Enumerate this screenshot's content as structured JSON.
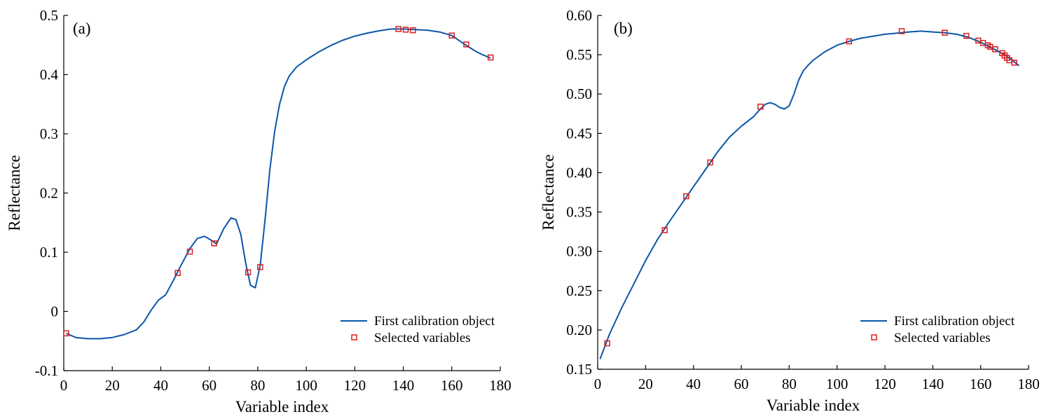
{
  "chart_data": [
    {
      "type": "line",
      "panel_label": "(a)",
      "xlabel": "Variable index",
      "ylabel": "Reflectance",
      "xlim": [
        0,
        180
      ],
      "ylim": [
        -0.1,
        0.5
      ],
      "x_ticks": [
        0,
        20,
        40,
        60,
        80,
        100,
        120,
        140,
        160,
        180
      ],
      "x_tick_labels": [
        "0",
        "20",
        "40",
        "60",
        "80",
        "100",
        "120",
        "140",
        "160",
        "180"
      ],
      "y_ticks": [
        -0.1,
        0,
        0.1,
        0.2,
        0.3,
        0.4,
        0.5
      ],
      "y_tick_labels": [
        "-0.1",
        "0",
        "0.1",
        "0.2",
        "0.3",
        "0.4",
        "0.5"
      ],
      "legend_position": "bottom-right",
      "series": [
        {
          "name": "First calibration object",
          "kind": "line",
          "color": "#0a56a8",
          "x": [
            1,
            5,
            10,
            15,
            20,
            25,
            30,
            33,
            36,
            39,
            42,
            45,
            48,
            52,
            55,
            58,
            61,
            63,
            66,
            69,
            71,
            73,
            75,
            77,
            79,
            81,
            83,
            85,
            87,
            89,
            91,
            93,
            96,
            100,
            105,
            110,
            115,
            120,
            125,
            130,
            135,
            140,
            145,
            150,
            155,
            160,
            165,
            170,
            173,
            176
          ],
          "y": [
            -0.037,
            -0.044,
            -0.046,
            -0.046,
            -0.044,
            -0.039,
            -0.031,
            -0.018,
            0.002,
            0.019,
            0.028,
            0.051,
            0.075,
            0.106,
            0.123,
            0.127,
            0.12,
            0.114,
            0.14,
            0.158,
            0.155,
            0.13,
            0.082,
            0.044,
            0.04,
            0.078,
            0.155,
            0.24,
            0.305,
            0.35,
            0.38,
            0.398,
            0.413,
            0.425,
            0.438,
            0.449,
            0.458,
            0.465,
            0.47,
            0.474,
            0.477,
            0.477,
            0.476,
            0.475,
            0.472,
            0.466,
            0.452,
            0.439,
            0.433,
            0.428
          ]
        },
        {
          "name": "Selected variables",
          "kind": "marker",
          "color": "#d81e1e",
          "x": [
            1,
            47,
            52,
            62,
            76,
            81,
            138,
            141,
            144,
            160,
            166,
            176
          ],
          "y": [
            -0.037,
            0.065,
            0.101,
            0.115,
            0.066,
            0.075,
            0.477,
            0.476,
            0.475,
            0.466,
            0.451,
            0.429
          ]
        }
      ]
    },
    {
      "type": "line",
      "panel_label": "(b)",
      "xlabel": "Variable index",
      "ylabel": "Reflectance",
      "xlim": [
        0,
        180
      ],
      "ylim": [
        0.15,
        0.6
      ],
      "x_ticks": [
        0,
        20,
        40,
        60,
        80,
        100,
        120,
        140,
        160,
        180
      ],
      "x_tick_labels": [
        "0",
        "20",
        "40",
        "60",
        "80",
        "100",
        "120",
        "140",
        "160",
        "180"
      ],
      "y_ticks": [
        0.15,
        0.2,
        0.25,
        0.3,
        0.35,
        0.4,
        0.45,
        0.5,
        0.55,
        0.6
      ],
      "y_tick_labels": [
        "0.15",
        "0.20",
        "0.25",
        "0.30",
        "0.35",
        "0.40",
        "0.45",
        "0.50",
        "0.55",
        "0.60"
      ],
      "legend_position": "bottom-right",
      "series": [
        {
          "name": "First calibration object",
          "kind": "line",
          "color": "#0a56a8",
          "x": [
            1,
            5,
            10,
            15,
            20,
            25,
            30,
            35,
            40,
            45,
            50,
            55,
            60,
            65,
            68,
            70,
            72,
            74,
            76,
            78,
            80,
            82,
            84,
            86,
            88,
            90,
            95,
            100,
            105,
            110,
            120,
            130,
            135,
            140,
            145,
            150,
            155,
            160,
            165,
            170,
            174,
            176
          ],
          "y": [
            0.163,
            0.195,
            0.228,
            0.258,
            0.288,
            0.315,
            0.338,
            0.36,
            0.382,
            0.404,
            0.426,
            0.445,
            0.459,
            0.471,
            0.481,
            0.487,
            0.489,
            0.487,
            0.483,
            0.481,
            0.485,
            0.5,
            0.518,
            0.53,
            0.537,
            0.543,
            0.554,
            0.562,
            0.567,
            0.571,
            0.576,
            0.579,
            0.58,
            0.579,
            0.578,
            0.576,
            0.572,
            0.566,
            0.558,
            0.55,
            0.541,
            0.536
          ]
        },
        {
          "name": "Selected variables",
          "kind": "marker",
          "color": "#d81e1e",
          "x": [
            4,
            28,
            37,
            47,
            68,
            105,
            127,
            145,
            154,
            159,
            161,
            163,
            164,
            166,
            169,
            170,
            171,
            172,
            174
          ],
          "y": [
            0.183,
            0.327,
            0.37,
            0.413,
            0.484,
            0.567,
            0.58,
            0.578,
            0.574,
            0.568,
            0.565,
            0.562,
            0.56,
            0.557,
            0.552,
            0.549,
            0.546,
            0.543,
            0.54
          ]
        }
      ]
    }
  ]
}
